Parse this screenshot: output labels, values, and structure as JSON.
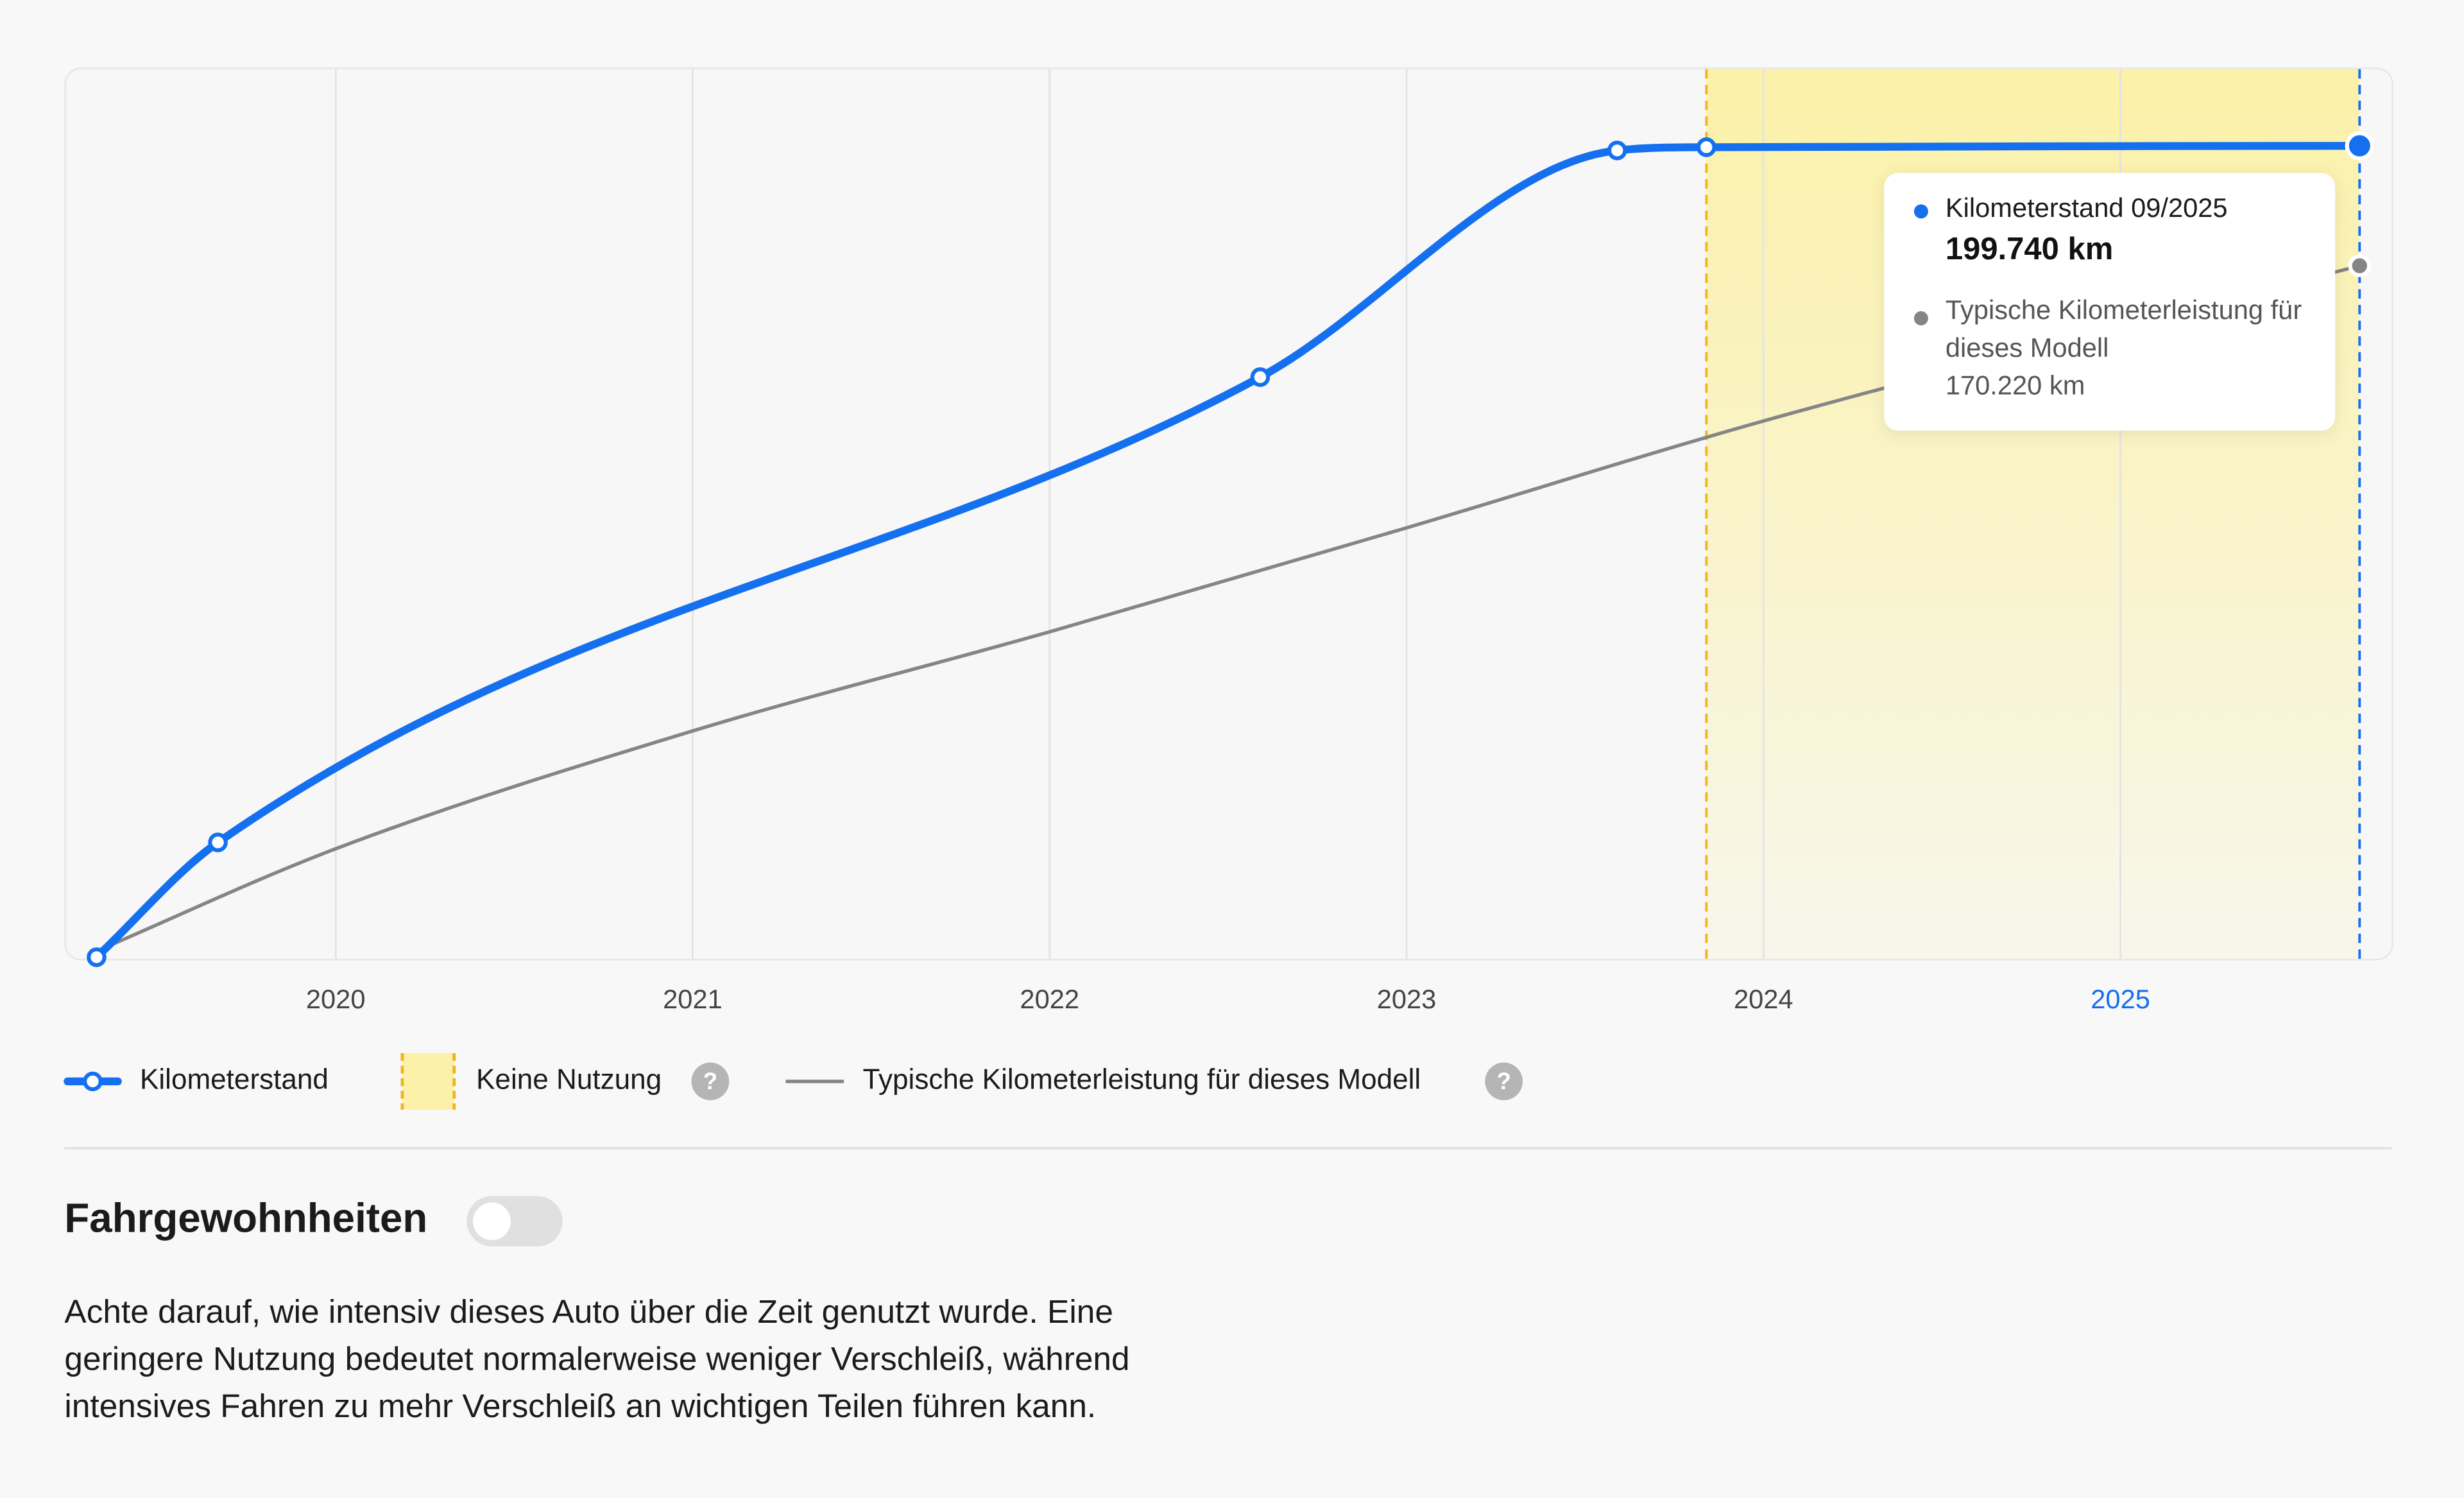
{
  "chart_data": {
    "type": "line",
    "xlim": [
      2019.24,
      2025.76
    ],
    "xticks": [
      2020,
      2021,
      2022,
      2023,
      2024,
      2025
    ],
    "xtick_colors": [
      "#444444",
      "#444444",
      "#444444",
      "#444444",
      "#444444",
      "#1570ef"
    ],
    "ylim": [
      0,
      219000
    ],
    "grid": true,
    "series": [
      {
        "name": "Kilometerstand",
        "color": "#1570ef",
        "markers": "all",
        "x": [
          2019.33,
          2019.67,
          2022.59,
          2023.59,
          2023.84,
          2025.67
        ],
        "values": [
          0,
          28260,
          142800,
          198600,
          199400,
          199740
        ],
        "value_labels": [
          null,
          null,
          null,
          null,
          null,
          "199.740 km"
        ]
      },
      {
        "name": "Typische Kilometerleistung für dieses Modell",
        "color": "#858585",
        "markers": "last",
        "x": [
          2019.33,
          2020,
          2021,
          2022,
          2023,
          2024,
          2025.67
        ],
        "values": [
          1500,
          26700,
          55700,
          80100,
          105700,
          132000,
          170220
        ],
        "value_labels": [
          null,
          null,
          null,
          null,
          null,
          null,
          "170.220 km"
        ]
      }
    ],
    "highlight": {
      "label": "Keine Nutzung",
      "from": 2023.84,
      "to": 2025.67,
      "color": "#fbf1a8"
    },
    "tooltip": {
      "title": "Kilometerstand 09/2025"
    },
    "help_icon": "?"
  },
  "section": {
    "title": "Fahrgewohnheiten",
    "lines": [
      "Achte darauf, wie intensiv dieses Auto über die Zeit genutzt wurde. Eine",
      "geringere Nutzung bedeutet normalerweise weniger Verschleiß, während",
      "intensives Fahren zu mehr Verschleiß an wichtigen Teilen führen kann."
    ]
  }
}
